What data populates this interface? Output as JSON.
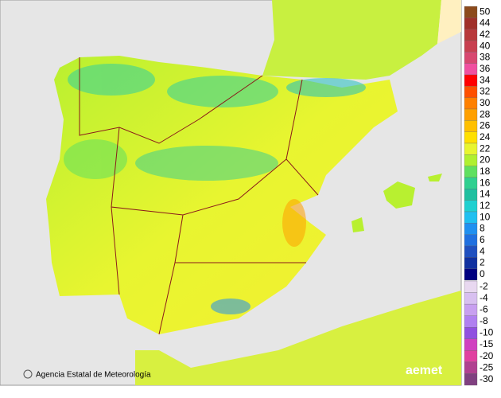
{
  "credit": "Agencia Estatal de Meteorología",
  "logo": "aemet",
  "legend": {
    "upper": [
      {
        "value": 50,
        "color": "#8c4a1c"
      },
      {
        "value": 44,
        "color": "#a0302a"
      },
      {
        "value": 42,
        "color": "#b8383a"
      },
      {
        "value": 40,
        "color": "#c84050"
      },
      {
        "value": 38,
        "color": "#d84870"
      },
      {
        "value": 36,
        "color": "#f050a0"
      },
      {
        "value": 34,
        "color": "#ff0000"
      },
      {
        "value": 32,
        "color": "#ff5000"
      },
      {
        "value": 30,
        "color": "#ff8000"
      },
      {
        "value": 28,
        "color": "#ffa000"
      },
      {
        "value": 26,
        "color": "#ffc000"
      },
      {
        "value": 24,
        "color": "#ffe000"
      },
      {
        "value": 22,
        "color": "#e8f530"
      },
      {
        "value": 20,
        "color": "#b0f030"
      },
      {
        "value": 18,
        "color": "#60e060"
      },
      {
        "value": 16,
        "color": "#30d090"
      },
      {
        "value": 14,
        "color": "#20c0a0"
      },
      {
        "value": 12,
        "color": "#20d0d0"
      },
      {
        "value": 10,
        "color": "#20c0f0"
      },
      {
        "value": 8,
        "color": "#2090f0"
      },
      {
        "value": 6,
        "color": "#2070e0"
      },
      {
        "value": 4,
        "color": "#2050c0"
      },
      {
        "value": 2,
        "color": "#1030a0"
      },
      {
        "value": 0,
        "color": "#000080"
      }
    ],
    "lower": [
      {
        "value": -2,
        "color": "#e8d8f0"
      },
      {
        "value": -4,
        "color": "#d8c0f0"
      },
      {
        "value": -6,
        "color": "#c8a0f0"
      },
      {
        "value": -8,
        "color": "#b080f0"
      },
      {
        "value": -10,
        "color": "#9050e0"
      },
      {
        "value": -15,
        "color": "#d040c0"
      },
      {
        "value": -20,
        "color": "#e040a0"
      },
      {
        "value": -25,
        "color": "#b04090"
      },
      {
        "value": -30,
        "color": "#804080"
      }
    ]
  }
}
